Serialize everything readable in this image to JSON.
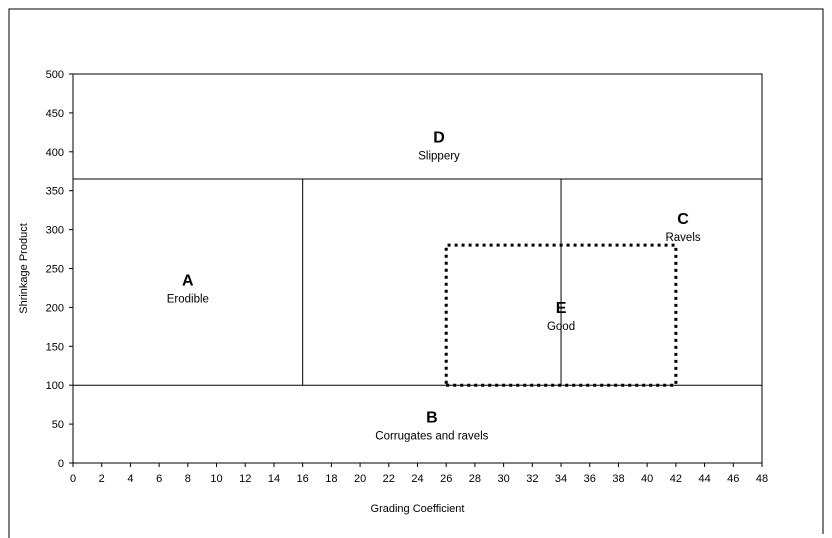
{
  "chart_data": {
    "type": "diagram-chart",
    "title": "",
    "xlabel": "Grading Coefficient",
    "ylabel": "Shrinkage Product",
    "xlim": [
      0,
      48
    ],
    "ylim": [
      0,
      500
    ],
    "x_ticks": [
      0,
      2,
      4,
      6,
      8,
      10,
      12,
      14,
      16,
      18,
      20,
      22,
      24,
      26,
      28,
      30,
      32,
      34,
      36,
      38,
      40,
      42,
      44,
      46,
      48
    ],
    "y_ticks": [
      0,
      50,
      100,
      150,
      200,
      250,
      300,
      350,
      400,
      450,
      500
    ],
    "grid": false,
    "boundaries": [
      {
        "style": "solid",
        "x": [
          0,
          48
        ],
        "y": [
          365,
          365
        ]
      },
      {
        "style": "solid",
        "x": [
          0,
          48
        ],
        "y": [
          100,
          100
        ]
      },
      {
        "style": "solid",
        "x": [
          16,
          16
        ],
        "y": [
          100,
          365
        ]
      },
      {
        "style": "solid",
        "x": [
          34,
          34
        ],
        "y": [
          100,
          365
        ]
      },
      {
        "style": "dotted",
        "x": [
          26,
          42,
          42,
          26,
          26
        ],
        "y": [
          100,
          100,
          280,
          280,
          100
        ]
      }
    ],
    "zones": [
      {
        "letter": "A",
        "label": "Erodible",
        "x": 8,
        "y": 228
      },
      {
        "letter": "B",
        "label": "Corrugates and ravels",
        "x": 25,
        "y": 52
      },
      {
        "letter": "C",
        "label": "Ravels",
        "x": 42.5,
        "y": 307
      },
      {
        "letter": "D",
        "label": "Slippery",
        "x": 25.5,
        "y": 412
      },
      {
        "letter": "E",
        "label": "Good",
        "x": 34,
        "y": 193
      }
    ]
  }
}
